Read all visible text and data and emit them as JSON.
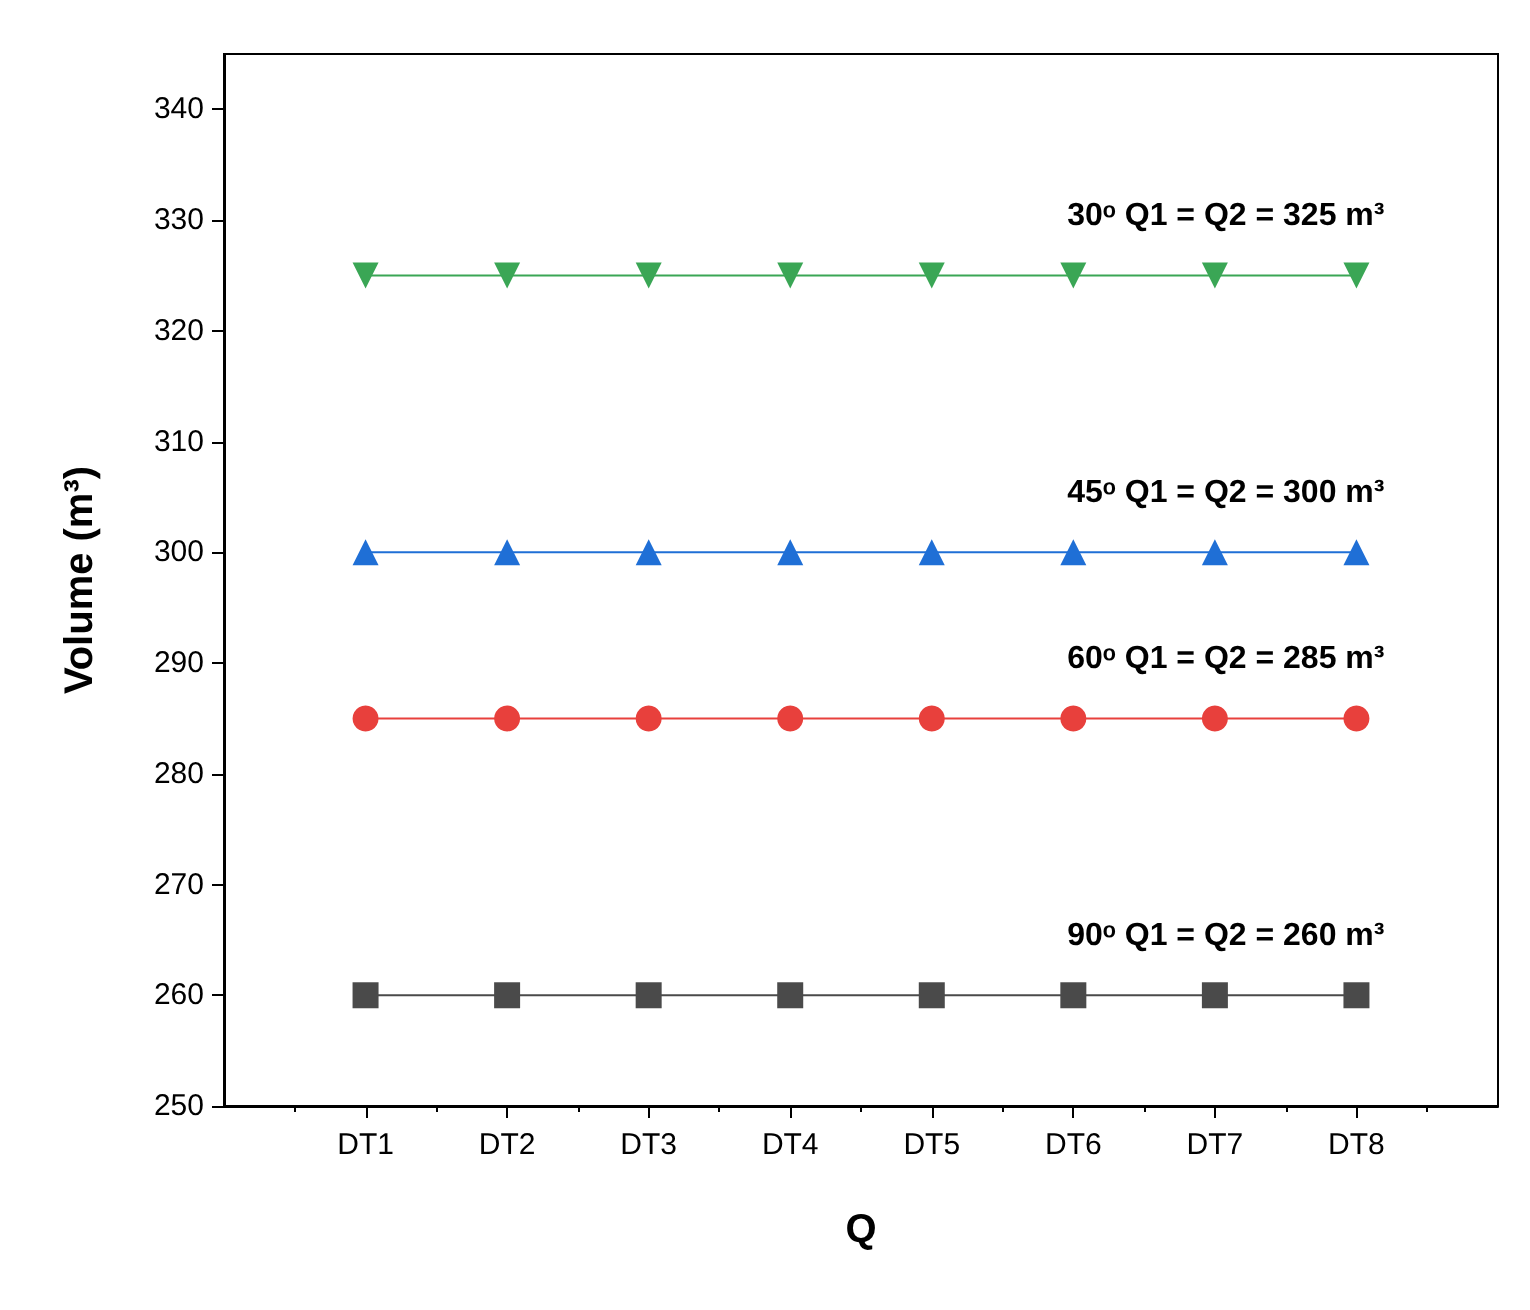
{
  "chart_data": {
    "type": "line",
    "xlabel": "Q",
    "ylabel": "Volume (m³)",
    "categories": [
      "DT1",
      "DT2",
      "DT3",
      "DT4",
      "DT5",
      "DT6",
      "DT7",
      "DT8"
    ],
    "series": [
      {
        "name": "90ᵒ Q1 = Q2 = 260 m³",
        "color": "#4a4a4a",
        "marker": "square",
        "values": [
          260,
          260,
          260,
          260,
          260,
          260,
          260,
          260
        ]
      },
      {
        "name": "60ᵒ Q1 = Q2 = 285 m³",
        "color": "#e8403c",
        "marker": "circle",
        "values": [
          285,
          285,
          285,
          285,
          285,
          285,
          285,
          285
        ]
      },
      {
        "name": "45ᵒ Q1 = Q2 = 300 m³",
        "color": "#1f6fd6",
        "marker": "triangle",
        "values": [
          300,
          300,
          300,
          300,
          300,
          300,
          300,
          300
        ]
      },
      {
        "name": "30ᵒ Q1 = Q2 = 325 m³",
        "color": "#3aa655",
        "marker": "triangle-down",
        "values": [
          325,
          325,
          325,
          325,
          325,
          325,
          325,
          325
        ]
      }
    ],
    "ylim": [
      250,
      345
    ],
    "yticks": [
      250,
      260,
      270,
      280,
      290,
      300,
      310,
      320,
      330,
      340
    ],
    "grid": false,
    "legend": false,
    "line_style": "solid"
  }
}
